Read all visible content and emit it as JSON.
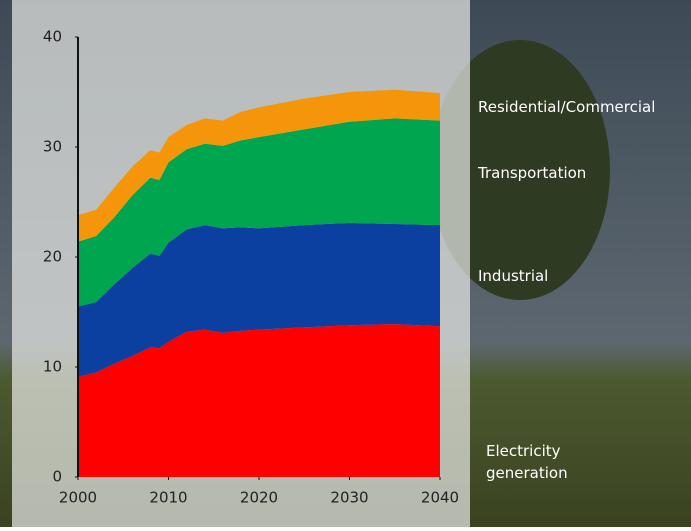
{
  "chart_data": {
    "type": "stacked_area",
    "x": [
      2000,
      2002,
      2004,
      2006,
      2008,
      2009,
      2010,
      2012,
      2014,
      2016,
      2018,
      2020,
      2025,
      2030,
      2035,
      2040
    ],
    "series": [
      {
        "name": "Electricity generation",
        "color": "#ff0000",
        "values": [
          9.1,
          9.5,
          10.3,
          11.0,
          11.8,
          11.7,
          12.3,
          13.2,
          13.4,
          13.1,
          13.3,
          13.4,
          13.6,
          13.8,
          13.9,
          13.7
        ]
      },
      {
        "name": "Industrial",
        "color": "#0b3fa0",
        "values": [
          6.4,
          6.4,
          7.2,
          8.0,
          8.5,
          8.4,
          9.0,
          9.3,
          9.5,
          9.5,
          9.4,
          9.2,
          9.3,
          9.3,
          9.1,
          9.2
        ]
      },
      {
        "name": "Transportation",
        "color": "#00a550",
        "values": [
          5.9,
          6.0,
          6.1,
          6.6,
          6.9,
          6.9,
          7.3,
          7.3,
          7.4,
          7.5,
          7.9,
          8.3,
          8.7,
          9.2,
          9.6,
          9.5
        ]
      },
      {
        "name": "Residential/Commercial",
        "color": "#f5960a",
        "values": [
          2.4,
          2.4,
          2.7,
          2.6,
          2.5,
          2.5,
          2.3,
          2.2,
          2.3,
          2.3,
          2.6,
          2.7,
          2.8,
          2.7,
          2.6,
          2.5
        ]
      }
    ],
    "xlim": [
      2000,
      2040
    ],
    "xticks": [
      2000,
      2010,
      2020,
      2030,
      2040
    ],
    "ylim": [
      0,
      40
    ],
    "yticks": [
      0,
      10,
      20,
      30,
      40
    ]
  }
}
